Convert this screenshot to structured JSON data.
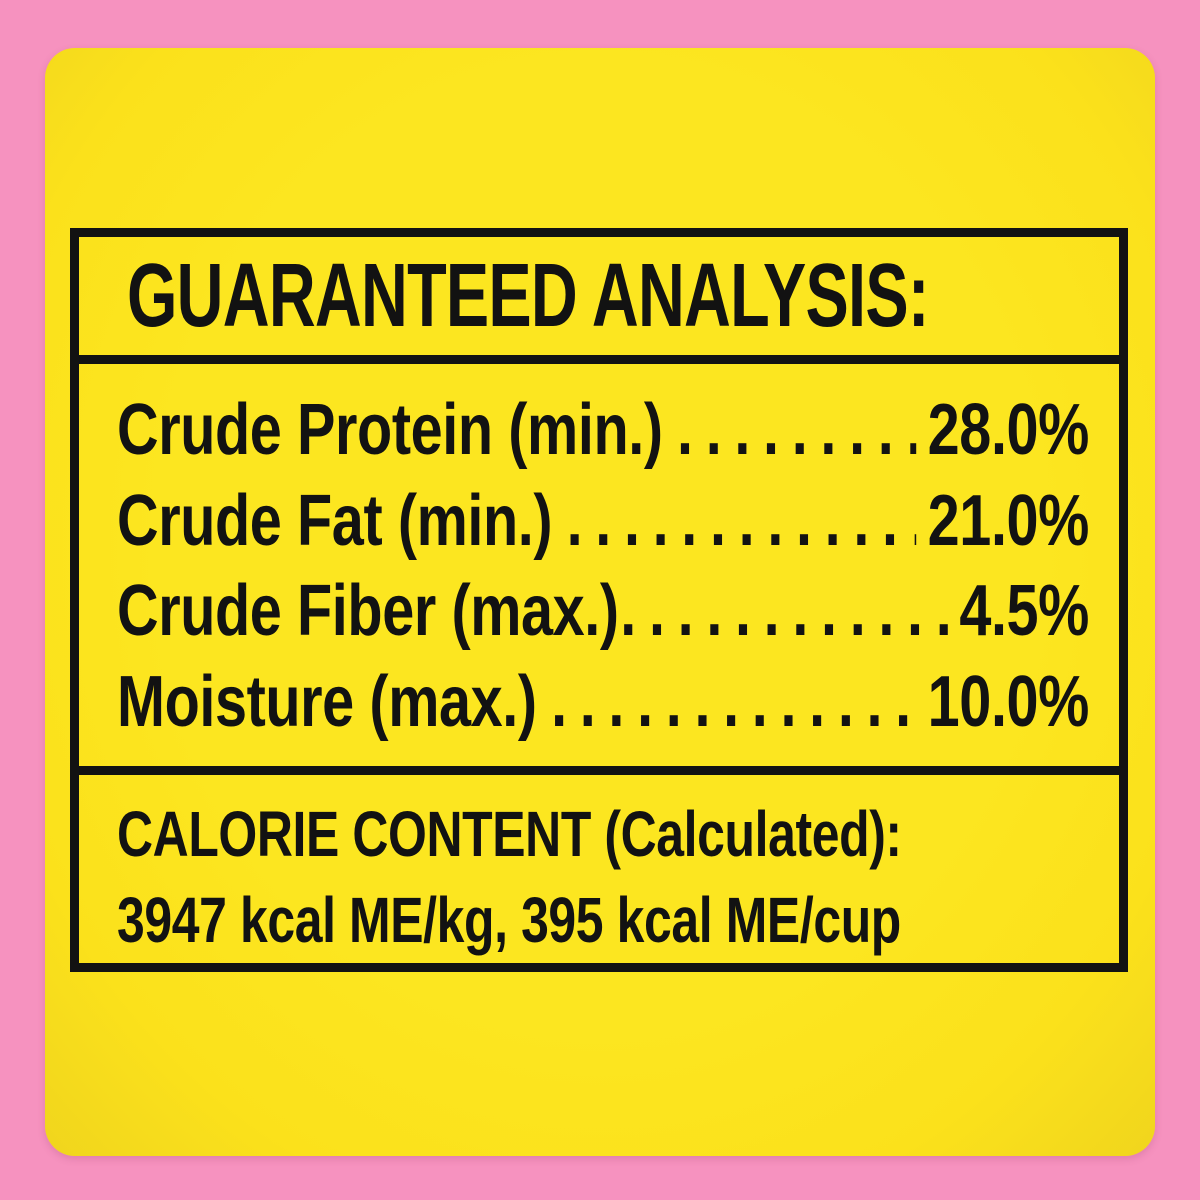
{
  "label": {
    "header": "GUARANTEED ANALYSIS:",
    "rows": [
      {
        "name": "Crude Protein (min.)",
        "leader": "...........",
        "value": "28.0%"
      },
      {
        "name": "Crude Fat (min.)",
        "leader": "..................",
        "value": "21.0%"
      },
      {
        "name": "Crude Fiber (max.)",
        "leader": ".................",
        "value": "4.5%"
      },
      {
        "name": "Moisture (max.)",
        "leader": "...................",
        "value": "10.0%"
      }
    ],
    "calorie": {
      "title": "CALORIE CONTENT (Calculated):",
      "values": "3947 kcal ME/kg, 395 kcal ME/cup"
    },
    "colors": {
      "background_pink": "#F692BF",
      "label_yellow": "#FBE11B",
      "text_black": "#121212"
    }
  }
}
